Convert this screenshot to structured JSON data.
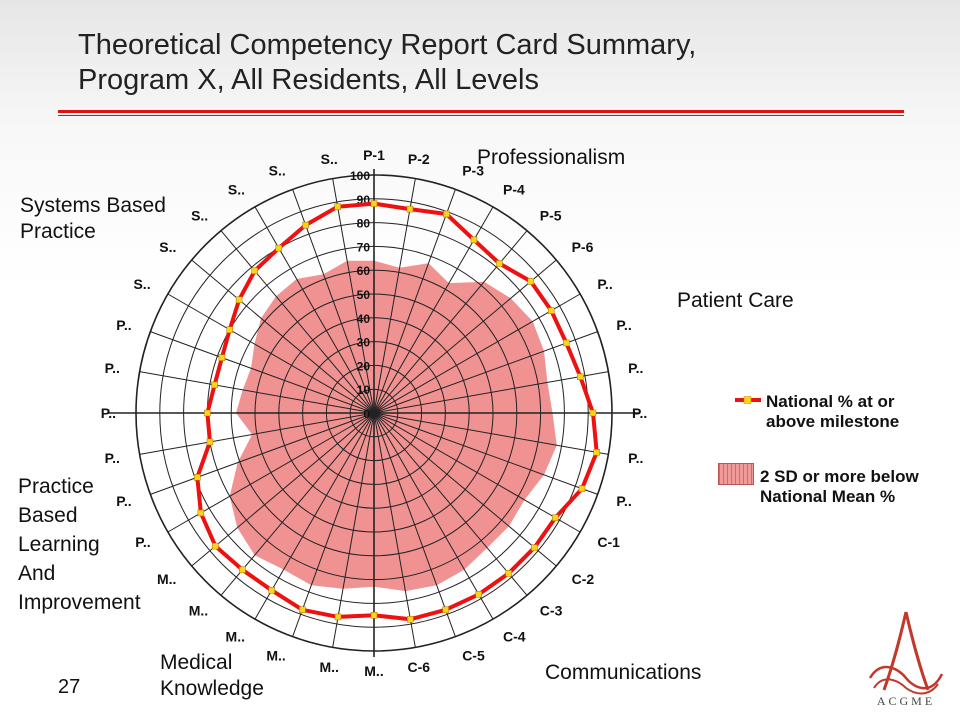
{
  "title": {
    "line1": "Theoretical Competency Report Card Summary,",
    "line2": "Program X, All Residents, All Levels"
  },
  "colors": {
    "accent": "#dd1111",
    "national_line": "#ee1111",
    "below_fill": "#f08c8c",
    "marker": "#f7d51b",
    "grid": "#222222"
  },
  "group_labels": {
    "professionalism": [
      "Professionalism"
    ],
    "patient_care": [
      "Patient Care"
    ],
    "systems": [
      "Systems Based",
      "Practice"
    ],
    "practice": [
      "Practice",
      "Based",
      "Learning",
      "And",
      "Improvement"
    ],
    "medical": [
      "Medical",
      "Knowledge"
    ],
    "communications": [
      "Communications"
    ]
  },
  "legend": {
    "national": [
      "National % at or",
      "above milestone"
    ],
    "below": [
      "2 SD or more below",
      "National Mean %"
    ]
  },
  "page_number": "27",
  "logo_text": "ACGME",
  "chart_data": {
    "type": "radar",
    "title": "Theoretical Competency Report Card Summary, Program X, All Residents, All Levels",
    "radial_ticks": [
      "0",
      "10",
      "20",
      "30",
      "40",
      "50",
      "60",
      "70",
      "80",
      "90",
      "100"
    ],
    "rlim": [
      0,
      100
    ],
    "grid": true,
    "legend_position": "right",
    "categories": [
      "P-1",
      "P-2",
      "P-3",
      "P-4",
      "P-5",
      "P-6",
      "P..",
      "P..",
      "P..",
      "P..",
      "P..",
      "P..",
      "C-1",
      "C-2",
      "C-3",
      "C-4",
      "C-5",
      "C-6",
      "M..",
      "M..",
      "M..",
      "M..",
      "M..",
      "M..",
      "P..",
      "P..",
      "P..",
      "P..",
      "P..",
      "P..",
      "S..",
      "S..",
      "S..",
      "S..",
      "S..",
      "S.."
    ],
    "series": [
      {
        "name": "National % at or above milestone",
        "style": "line",
        "values": [
          88,
          87,
          89,
          84,
          82,
          86,
          86,
          86,
          88,
          92,
          95,
          93,
          88,
          88,
          88,
          88,
          88,
          88,
          85,
          87,
          88,
          86,
          86,
          87,
          84,
          79,
          70,
          70,
          68,
          68,
          70,
          74,
          78,
          80,
          84,
          88
        ]
      },
      {
        "name": "2 SD or more below National Mean %",
        "style": "area",
        "values": [
          64,
          62,
          67,
          63,
          72,
          75,
          77,
          76,
          74,
          75,
          78,
          76,
          73,
          74,
          74,
          76,
          77,
          76,
          73,
          75,
          77,
          76,
          78,
          75,
          70,
          61,
          52,
          58,
          56,
          55,
          58,
          62,
          64,
          65,
          62,
          65
        ]
      }
    ]
  }
}
